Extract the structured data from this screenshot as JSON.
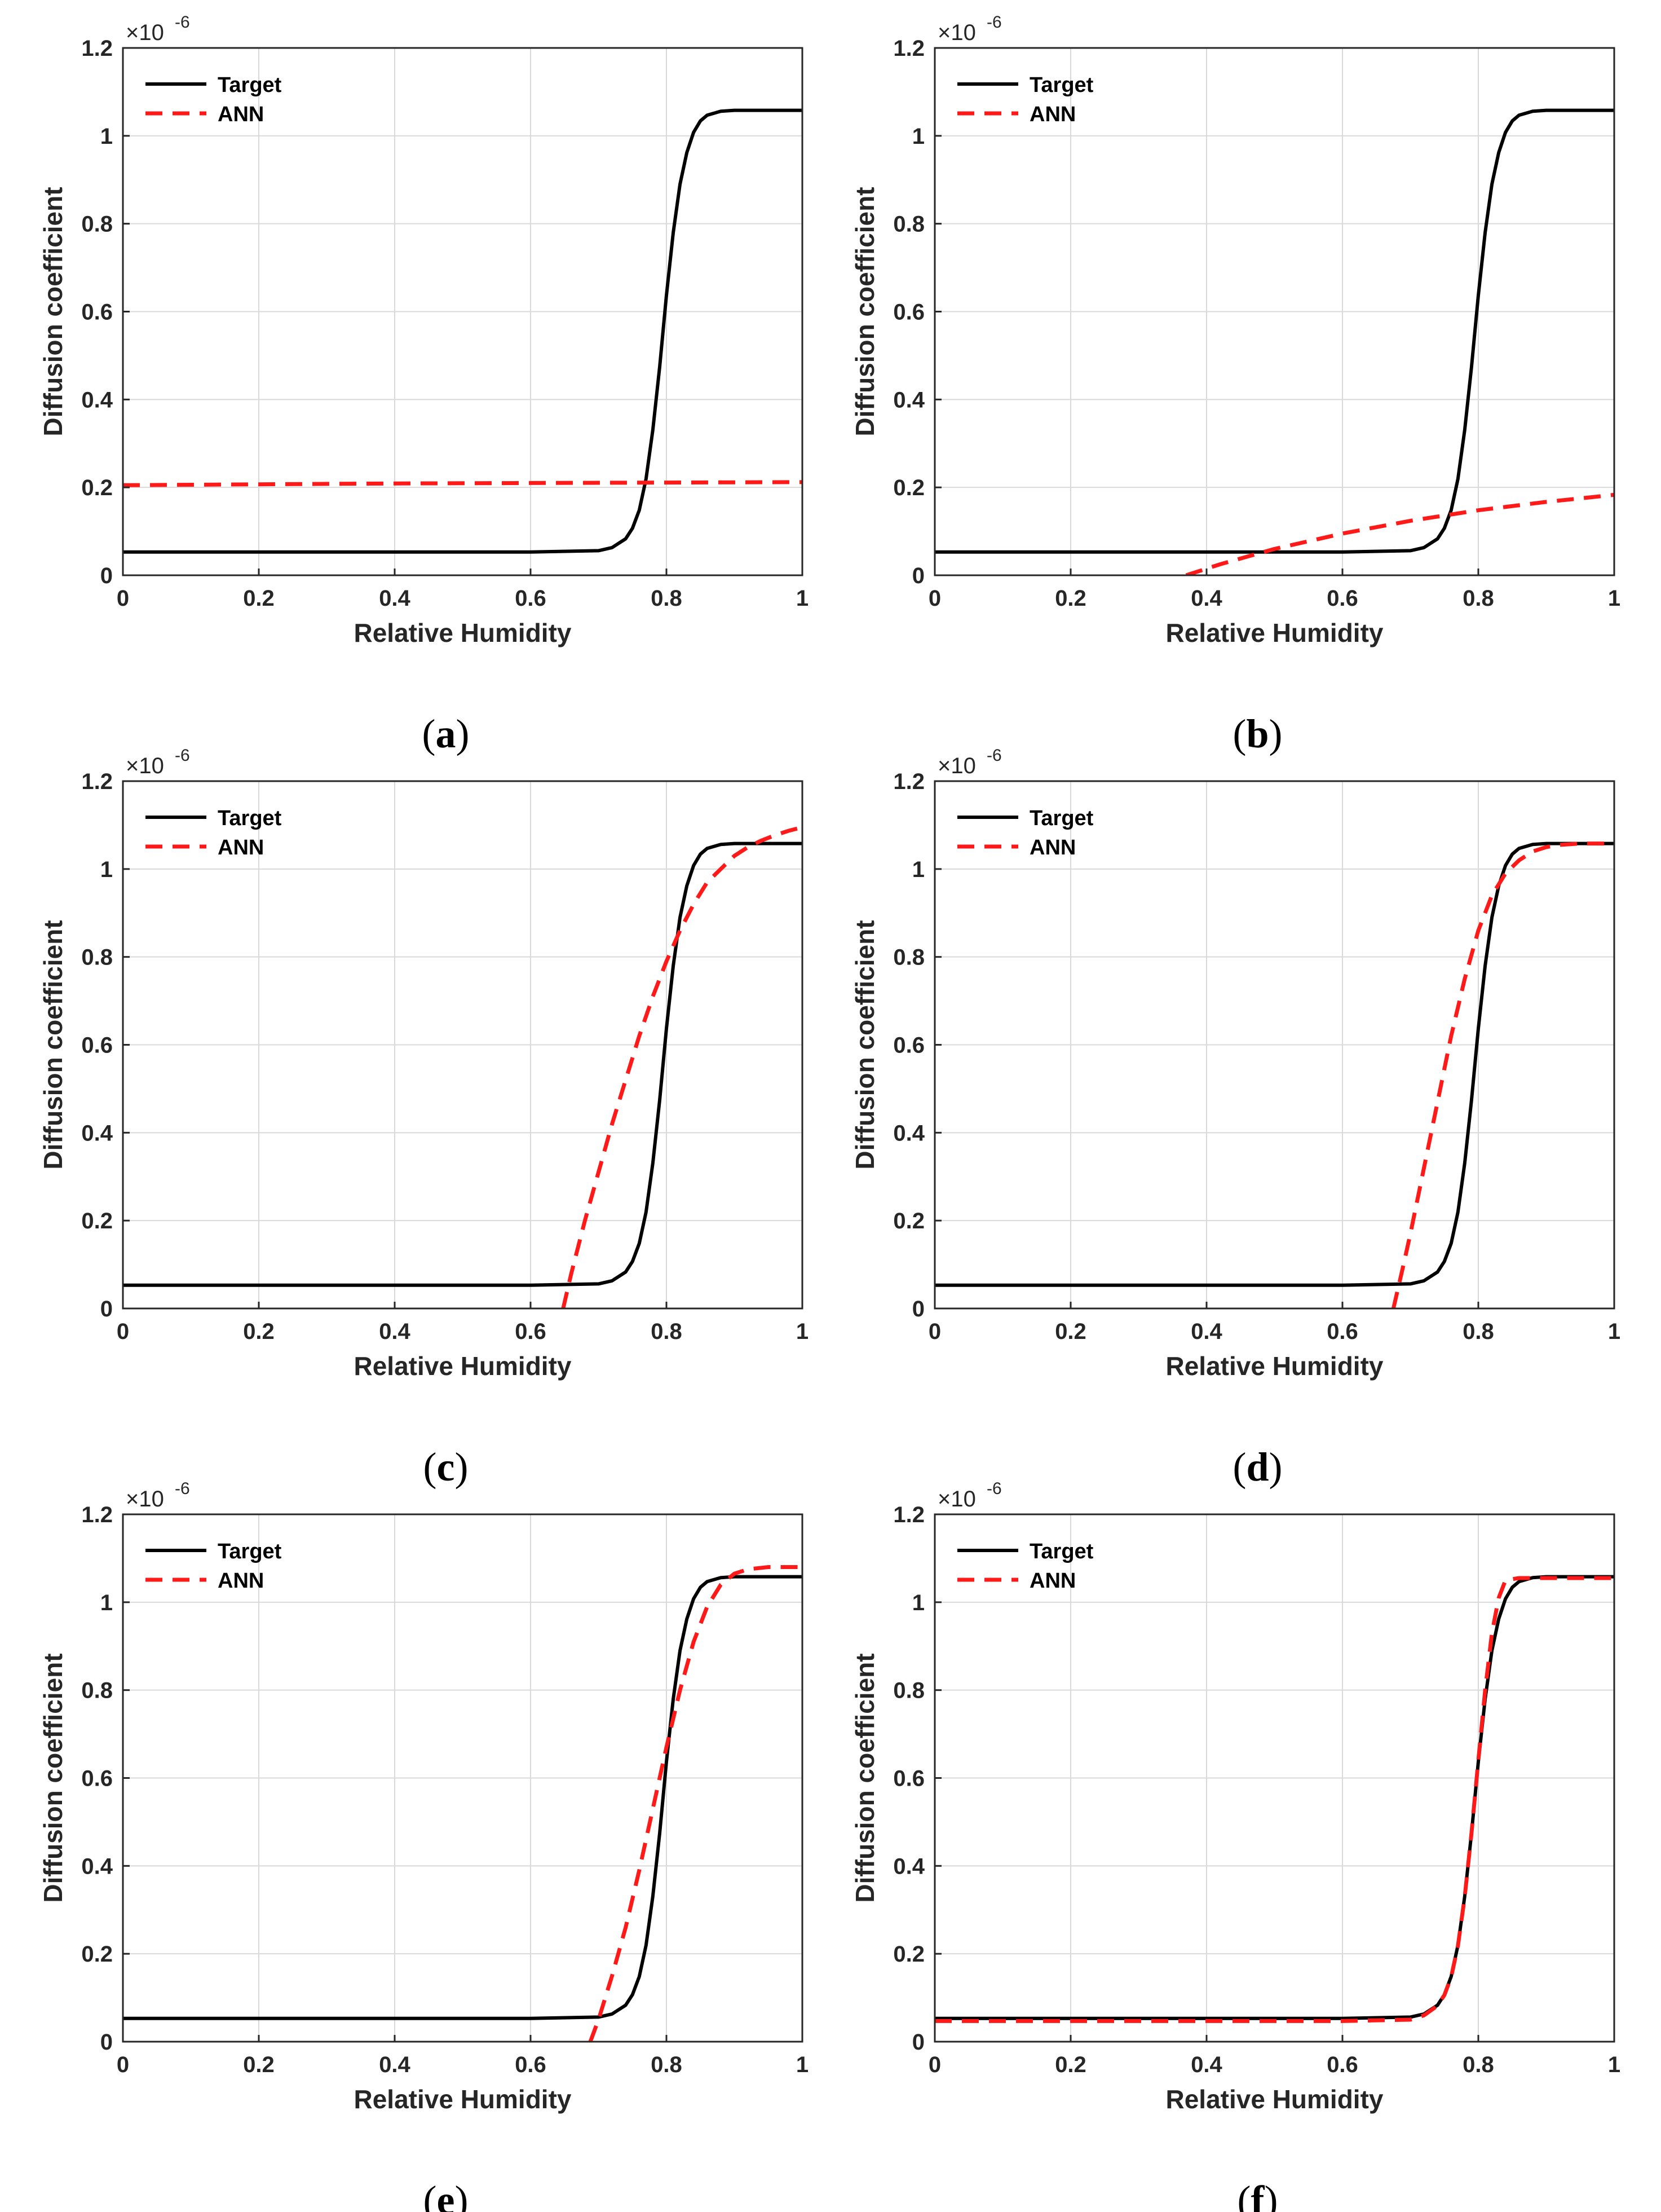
{
  "colors": {
    "target": "#000000",
    "ann": "#ff1a1a",
    "grid": "#d9d9d9",
    "axis": "#262626"
  },
  "chart_data": [
    {
      "type": "line",
      "panel": "(a)",
      "caption_letter": "a",
      "xlabel": "Relative Humidity",
      "ylabel": "Diffusion coefficient",
      "y_exponent_text": "×10",
      "y_exponent_power": "-6",
      "xlim": [
        0,
        1
      ],
      "ylim": [
        0,
        1.2
      ],
      "xticks": [
        "0",
        "0.2",
        "0.4",
        "0.6",
        "0.8",
        "1"
      ],
      "yticks": [
        "0",
        "0.2",
        "0.4",
        "0.6",
        "0.8",
        "1",
        "1.2"
      ],
      "grid": true,
      "legend": {
        "position": "top-left",
        "entries": [
          "Target",
          "ANN"
        ]
      },
      "series": [
        {
          "name": "Target",
          "style": "solid",
          "x": [
            0,
            0.1,
            0.2,
            0.3,
            0.4,
            0.5,
            0.6,
            0.7,
            0.72,
            0.74,
            0.75,
            0.76,
            0.77,
            0.78,
            0.79,
            0.8,
            0.81,
            0.82,
            0.83,
            0.84,
            0.85,
            0.86,
            0.88,
            0.9,
            1.0
          ],
          "y": [
            0.053,
            0.053,
            0.053,
            0.053,
            0.053,
            0.053,
            0.053,
            0.056,
            0.063,
            0.083,
            0.107,
            0.148,
            0.219,
            0.331,
            0.474,
            0.637,
            0.78,
            0.89,
            0.962,
            1.008,
            1.034,
            1.047,
            1.056,
            1.058,
            1.058
          ]
        },
        {
          "name": "ANN",
          "style": "dashed",
          "x": [
            0,
            0.2,
            0.4,
            0.6,
            0.8,
            1.0
          ],
          "y": [
            0.205,
            0.207,
            0.209,
            0.21,
            0.211,
            0.212
          ]
        }
      ]
    },
    {
      "type": "line",
      "panel": "(b)",
      "caption_letter": "b",
      "xlabel": "Relative Humidity",
      "ylabel": "Diffusion coefficient",
      "y_exponent_text": "×10",
      "y_exponent_power": "-6",
      "xlim": [
        0,
        1
      ],
      "ylim": [
        0,
        1.2
      ],
      "xticks": [
        "0",
        "0.2",
        "0.4",
        "0.6",
        "0.8",
        "1"
      ],
      "yticks": [
        "0",
        "0.2",
        "0.4",
        "0.6",
        "0.8",
        "1",
        "1.2"
      ],
      "grid": true,
      "legend": {
        "position": "top-left",
        "entries": [
          "Target",
          "ANN"
        ]
      },
      "series": [
        {
          "name": "Target",
          "style": "solid",
          "x": [
            0,
            0.1,
            0.2,
            0.3,
            0.4,
            0.5,
            0.6,
            0.7,
            0.72,
            0.74,
            0.75,
            0.76,
            0.77,
            0.78,
            0.79,
            0.8,
            0.81,
            0.82,
            0.83,
            0.84,
            0.85,
            0.86,
            0.88,
            0.9,
            1.0
          ],
          "y": [
            0.053,
            0.053,
            0.053,
            0.053,
            0.053,
            0.053,
            0.053,
            0.056,
            0.063,
            0.083,
            0.107,
            0.148,
            0.219,
            0.331,
            0.474,
            0.637,
            0.78,
            0.89,
            0.962,
            1.008,
            1.034,
            1.047,
            1.056,
            1.058,
            1.058
          ]
        },
        {
          "name": "ANN",
          "style": "dashed",
          "x": [
            0.37,
            0.42,
            0.5,
            0.6,
            0.7,
            0.8,
            0.9,
            1.0
          ],
          "y": [
            0.0,
            0.025,
            0.06,
            0.095,
            0.124,
            0.148,
            0.167,
            0.183
          ]
        }
      ]
    },
    {
      "type": "line",
      "panel": "(c)",
      "caption_letter": "c",
      "xlabel": "Relative Humidity",
      "ylabel": "Diffusion coefficient",
      "y_exponent_text": "×10",
      "y_exponent_power": "-6",
      "xlim": [
        0,
        1
      ],
      "ylim": [
        0,
        1.2
      ],
      "xticks": [
        "0",
        "0.2",
        "0.4",
        "0.6",
        "0.8",
        "1"
      ],
      "yticks": [
        "0",
        "0.2",
        "0.4",
        "0.6",
        "0.8",
        "1",
        "1.2"
      ],
      "grid": true,
      "legend": {
        "position": "top-left",
        "entries": [
          "Target",
          "ANN"
        ]
      },
      "series": [
        {
          "name": "Target",
          "style": "solid",
          "x": [
            0,
            0.1,
            0.2,
            0.3,
            0.4,
            0.5,
            0.6,
            0.7,
            0.72,
            0.74,
            0.75,
            0.76,
            0.77,
            0.78,
            0.79,
            0.8,
            0.81,
            0.82,
            0.83,
            0.84,
            0.85,
            0.86,
            0.88,
            0.9,
            1.0
          ],
          "y": [
            0.053,
            0.053,
            0.053,
            0.053,
            0.053,
            0.053,
            0.053,
            0.056,
            0.063,
            0.083,
            0.107,
            0.148,
            0.219,
            0.331,
            0.474,
            0.637,
            0.78,
            0.89,
            0.962,
            1.008,
            1.034,
            1.047,
            1.056,
            1.058,
            1.058
          ]
        },
        {
          "name": "ANN",
          "style": "dashed",
          "x": [
            0.648,
            0.66,
            0.68,
            0.7,
            0.72,
            0.74,
            0.76,
            0.78,
            0.8,
            0.82,
            0.84,
            0.86,
            0.88,
            0.9,
            0.92,
            0.94,
            0.96,
            0.98,
            1.0
          ],
          "y": [
            0.0,
            0.08,
            0.2,
            0.31,
            0.42,
            0.52,
            0.62,
            0.71,
            0.79,
            0.86,
            0.92,
            0.97,
            1.0,
            1.03,
            1.05,
            1.065,
            1.077,
            1.087,
            1.095
          ]
        }
      ]
    },
    {
      "type": "line",
      "panel": "(d)",
      "caption_letter": "d",
      "xlabel": "Relative Humidity",
      "ylabel": "Diffusion coefficient",
      "y_exponent_text": "×10",
      "y_exponent_power": "-6",
      "xlim": [
        0,
        1
      ],
      "ylim": [
        0,
        1.2
      ],
      "xticks": [
        "0",
        "0.2",
        "0.4",
        "0.6",
        "0.8",
        "1"
      ],
      "yticks": [
        "0",
        "0.2",
        "0.4",
        "0.6",
        "0.8",
        "1",
        "1.2"
      ],
      "grid": true,
      "legend": {
        "position": "top-left",
        "entries": [
          "Target",
          "ANN"
        ]
      },
      "series": [
        {
          "name": "Target",
          "style": "solid",
          "x": [
            0,
            0.1,
            0.2,
            0.3,
            0.4,
            0.5,
            0.6,
            0.7,
            0.72,
            0.74,
            0.75,
            0.76,
            0.77,
            0.78,
            0.79,
            0.8,
            0.81,
            0.82,
            0.83,
            0.84,
            0.85,
            0.86,
            0.88,
            0.9,
            1.0
          ],
          "y": [
            0.053,
            0.053,
            0.053,
            0.053,
            0.053,
            0.053,
            0.053,
            0.056,
            0.063,
            0.083,
            0.107,
            0.148,
            0.219,
            0.331,
            0.474,
            0.637,
            0.78,
            0.89,
            0.962,
            1.008,
            1.034,
            1.047,
            1.056,
            1.058,
            1.058
          ]
        },
        {
          "name": "ANN",
          "style": "dashed",
          "x": [
            0.675,
            0.69,
            0.7,
            0.72,
            0.74,
            0.76,
            0.78,
            0.8,
            0.82,
            0.84,
            0.86,
            0.88,
            0.9,
            0.92,
            0.95,
            1.0
          ],
          "y": [
            0.0,
            0.1,
            0.17,
            0.32,
            0.47,
            0.62,
            0.75,
            0.86,
            0.94,
            0.99,
            1.02,
            1.04,
            1.05,
            1.055,
            1.058,
            1.058
          ]
        }
      ]
    },
    {
      "type": "line",
      "panel": "(e)",
      "caption_letter": "e",
      "xlabel": "Relative Humidity",
      "ylabel": "Diffusion coefficient",
      "y_exponent_text": "×10",
      "y_exponent_power": "-6",
      "xlim": [
        0,
        1
      ],
      "ylim": [
        0,
        1.2
      ],
      "xticks": [
        "0",
        "0.2",
        "0.4",
        "0.6",
        "0.8",
        "1"
      ],
      "yticks": [
        "0",
        "0.2",
        "0.4",
        "0.6",
        "0.8",
        "1",
        "1.2"
      ],
      "grid": true,
      "legend": {
        "position": "top-left",
        "entries": [
          "Target",
          "ANN"
        ]
      },
      "series": [
        {
          "name": "Target",
          "style": "solid",
          "x": [
            0,
            0.1,
            0.2,
            0.3,
            0.4,
            0.5,
            0.6,
            0.7,
            0.72,
            0.74,
            0.75,
            0.76,
            0.77,
            0.78,
            0.79,
            0.8,
            0.81,
            0.82,
            0.83,
            0.84,
            0.85,
            0.86,
            0.88,
            0.9,
            1.0
          ],
          "y": [
            0.053,
            0.053,
            0.053,
            0.053,
            0.053,
            0.053,
            0.053,
            0.056,
            0.063,
            0.083,
            0.107,
            0.148,
            0.219,
            0.331,
            0.474,
            0.637,
            0.78,
            0.89,
            0.962,
            1.008,
            1.034,
            1.047,
            1.056,
            1.058,
            1.058
          ]
        },
        {
          "name": "ANN",
          "style": "dashed",
          "x": [
            0.688,
            0.7,
            0.72,
            0.74,
            0.76,
            0.78,
            0.8,
            0.82,
            0.84,
            0.86,
            0.88,
            0.9,
            0.92,
            0.95,
            1.0
          ],
          "y": [
            0.0,
            0.05,
            0.15,
            0.26,
            0.39,
            0.53,
            0.67,
            0.8,
            0.91,
            0.99,
            1.04,
            1.065,
            1.075,
            1.08,
            1.08
          ]
        }
      ]
    },
    {
      "type": "line",
      "panel": "(f)",
      "caption_letter": "f",
      "xlabel": "Relative Humidity",
      "ylabel": "Diffusion coefficient",
      "y_exponent_text": "×10",
      "y_exponent_power": "-6",
      "xlim": [
        0,
        1
      ],
      "ylim": [
        0,
        1.2
      ],
      "xticks": [
        "0",
        "0.2",
        "0.4",
        "0.6",
        "0.8",
        "1"
      ],
      "yticks": [
        "0",
        "0.2",
        "0.4",
        "0.6",
        "0.8",
        "1",
        "1.2"
      ],
      "grid": true,
      "legend": {
        "position": "top-left",
        "entries": [
          "Target",
          "ANN"
        ]
      },
      "series": [
        {
          "name": "Target",
          "style": "solid",
          "x": [
            0,
            0.1,
            0.2,
            0.3,
            0.4,
            0.5,
            0.6,
            0.7,
            0.72,
            0.74,
            0.75,
            0.76,
            0.77,
            0.78,
            0.79,
            0.8,
            0.81,
            0.82,
            0.83,
            0.84,
            0.85,
            0.86,
            0.88,
            0.9,
            1.0
          ],
          "y": [
            0.053,
            0.053,
            0.053,
            0.053,
            0.053,
            0.053,
            0.053,
            0.056,
            0.063,
            0.083,
            0.107,
            0.148,
            0.219,
            0.331,
            0.474,
            0.637,
            0.78,
            0.89,
            0.962,
            1.008,
            1.034,
            1.047,
            1.056,
            1.058,
            1.058
          ]
        },
        {
          "name": "ANN",
          "style": "dashed",
          "x": [
            0,
            0.1,
            0.2,
            0.3,
            0.4,
            0.5,
            0.6,
            0.7,
            0.72,
            0.74,
            0.75,
            0.76,
            0.77,
            0.78,
            0.79,
            0.8,
            0.81,
            0.82,
            0.83,
            0.84,
            0.86,
            0.9,
            1.0
          ],
          "y": [
            0.047,
            0.047,
            0.047,
            0.047,
            0.047,
            0.047,
            0.047,
            0.05,
            0.06,
            0.082,
            0.106,
            0.147,
            0.218,
            0.33,
            0.475,
            0.64,
            0.8,
            0.93,
            1.01,
            1.05,
            1.055,
            1.055,
            1.055
          ]
        }
      ]
    }
  ]
}
